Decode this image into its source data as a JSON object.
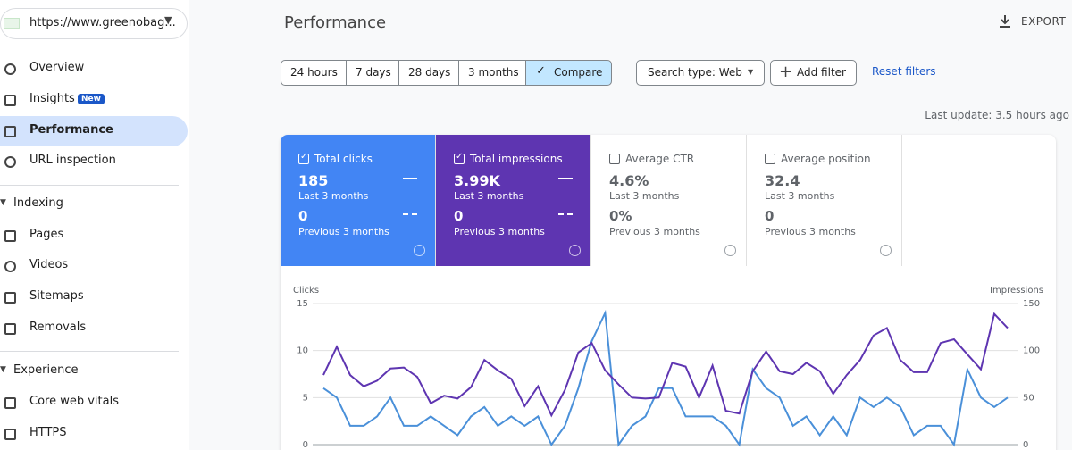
{
  "site": "https://www.greenobag...",
  "nav": [
    {
      "label": "Overview"
    },
    {
      "label": "Insights",
      "badge": "New"
    },
    {
      "label": "Performance",
      "active": true
    },
    {
      "label": "URL inspection"
    },
    {
      "section": "Indexing"
    },
    {
      "label": "Pages"
    },
    {
      "label": "Videos"
    },
    {
      "label": "Sitemaps"
    },
    {
      "label": "Removals"
    },
    {
      "section": "Experience"
    },
    {
      "label": "Core web vitals"
    },
    {
      "label": "HTTPS"
    }
  ],
  "header": {
    "title": "Performance",
    "export": "EXPORT"
  },
  "filters": {
    "date_ranges": [
      {
        "label": "24 hours"
      },
      {
        "label": "7 days"
      },
      {
        "label": "28 days"
      },
      {
        "label": "3 months"
      },
      {
        "label": "Compare",
        "selected": true
      }
    ],
    "search_type": "Search type: Web",
    "add_filter": "Add filter",
    "reset": "Reset filters"
  },
  "last_update": "Last update: 3.5 hours ago",
  "metrics": [
    {
      "label": "Total clicks",
      "value": "185",
      "period": "Last 3 months",
      "compare_value": "0",
      "compare_period": "Previous 3 months",
      "checked": true,
      "color": "#4285f4"
    },
    {
      "label": "Total impressions",
      "value": "3.99K",
      "period": "Last 3 months",
      "compare_value": "0",
      "compare_period": "Previous 3 months",
      "checked": true,
      "color": "#5e35b1"
    },
    {
      "label": "Average CTR",
      "value": "4.6%",
      "period": "Last 3 months",
      "compare_value": "0%",
      "compare_period": "Previous 3 months",
      "checked": false
    },
    {
      "label": "Average position",
      "value": "32.4",
      "period": "Last 3 months",
      "compare_value": "0",
      "compare_period": "Previous 3 months",
      "checked": false
    }
  ],
  "chart_data": {
    "type": "line",
    "y_label": "Clicks",
    "y2_label": "Impressions",
    "ylim": [
      0,
      15
    ],
    "yticks": [
      0,
      5,
      10,
      15
    ],
    "y2lim": [
      0,
      150
    ],
    "y2ticks": [
      0,
      50,
      100,
      150
    ],
    "grid": true,
    "series": [
      {
        "name": "Clicks",
        "color": "#4a90d9",
        "values": [
          6,
          5,
          2,
          2,
          3,
          5,
          2,
          2,
          3,
          2,
          1,
          3,
          4,
          2,
          3,
          2,
          3,
          0,
          2,
          6,
          11,
          14,
          0,
          2,
          3,
          6,
          6,
          3,
          3,
          3,
          2,
          0,
          8,
          6,
          5,
          2,
          3,
          1,
          3,
          1,
          5,
          4,
          5,
          4,
          1,
          2,
          2,
          0,
          8,
          5,
          4,
          5
        ]
      },
      {
        "name": "Impressions",
        "color": "#5e35b1",
        "axis": "y2",
        "values": [
          74,
          104,
          74,
          62,
          68,
          81,
          82,
          72,
          44,
          52,
          49,
          61,
          90,
          79,
          70,
          41,
          62,
          31,
          58,
          98,
          108,
          79,
          64,
          50,
          49,
          50,
          87,
          83,
          50,
          84,
          36,
          33,
          78,
          99,
          78,
          75,
          87,
          78,
          54,
          74,
          90,
          116,
          124,
          90,
          77,
          77,
          108,
          112,
          96,
          80,
          139,
          124
        ]
      }
    ]
  }
}
